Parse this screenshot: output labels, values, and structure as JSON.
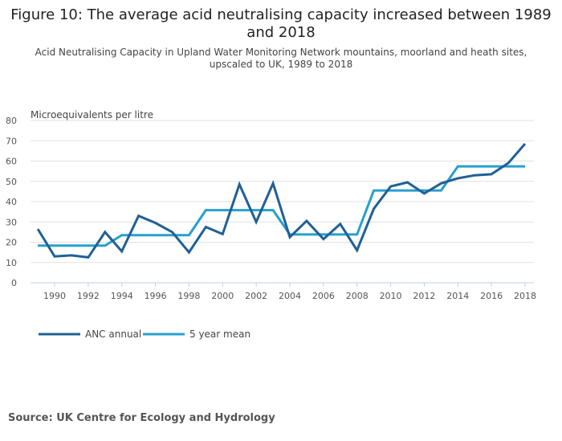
{
  "title": "Figure 10: The average acid neutralising capacity increased between 1989 and 2018",
  "subtitle": "Acid Neutralising Capacity in Upland Water Monitoring Network mountains, moorland and heath sites, upscaled to UK, 1989 to 2018",
  "source": "Source: UK Centre for Ecology and Hydrology",
  "chart_data": {
    "type": "line",
    "ylabel": "Microequivalents per litre",
    "ylim": [
      0,
      80
    ],
    "yticks": [
      0,
      10,
      20,
      30,
      40,
      50,
      60,
      70,
      80
    ],
    "xticks": [
      1990,
      1992,
      1994,
      1996,
      1998,
      2000,
      2002,
      2004,
      2006,
      2008,
      2010,
      2012,
      2014,
      2016,
      2018
    ],
    "x": [
      1989,
      1990,
      1991,
      1992,
      1993,
      1994,
      1995,
      1996,
      1997,
      1998,
      1999,
      2000,
      2001,
      2002,
      2003,
      2004,
      2005,
      2006,
      2007,
      2008,
      2009,
      2010,
      2011,
      2012,
      2013,
      2014,
      2015,
      2016,
      2017,
      2018
    ],
    "grid": true,
    "legend_position": "bottom-left",
    "series": [
      {
        "name": "ANC annual",
        "color": "#206095",
        "values": [
          26.5,
          13,
          13.5,
          12.5,
          25,
          15.5,
          33,
          29.5,
          25,
          15,
          27.5,
          24,
          48.5,
          30,
          49,
          22.5,
          30.5,
          21.5,
          29,
          16,
          36.5,
          47.5,
          49.5,
          44,
          49,
          51.5,
          53,
          53.5,
          59,
          68.5
        ]
      },
      {
        "name": "5 year mean",
        "color": "#27a0cc",
        "values": [
          18.3,
          18.3,
          18.3,
          18.3,
          18.3,
          23.5,
          23.5,
          23.5,
          23.5,
          23.5,
          35.8,
          35.8,
          35.8,
          35.8,
          35.8,
          23.8,
          23.8,
          23.8,
          23.8,
          23.8,
          45.5,
          45.5,
          45.5,
          45.5,
          45.5,
          57.4,
          57.4,
          57.4,
          57.4,
          57.4
        ]
      }
    ]
  }
}
